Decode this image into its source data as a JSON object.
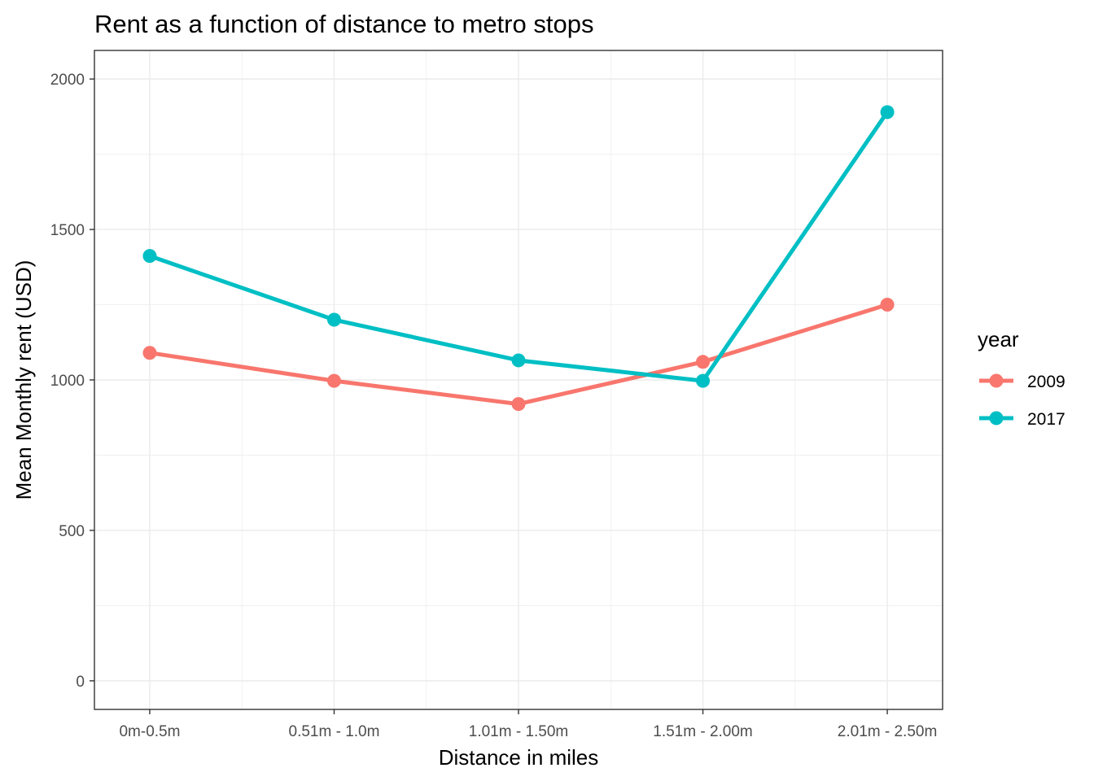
{
  "chart_data": {
    "type": "line",
    "title": "Rent as a function of distance to metro stops",
    "xlabel": "Distance in miles",
    "ylabel": "Mean Monthly rent (USD)",
    "categories": [
      "0m-0.5m",
      "0.51m - 1.0m",
      "1.01m - 1.50m",
      "1.51m - 2.00m",
      "2.01m - 2.50m"
    ],
    "ylim": [
      -95,
      2095
    ],
    "yticks": [
      0,
      500,
      1000,
      1500,
      2000
    ],
    "grid": true,
    "legend": {
      "title": "year",
      "position": "right"
    },
    "series": [
      {
        "name": "2009",
        "color": "#F8766D",
        "values": [
          1090,
          997,
          920,
          1060,
          1250
        ]
      },
      {
        "name": "2017",
        "color": "#00BFC4",
        "values": [
          1412,
          1200,
          1065,
          997,
          1890
        ]
      }
    ]
  }
}
